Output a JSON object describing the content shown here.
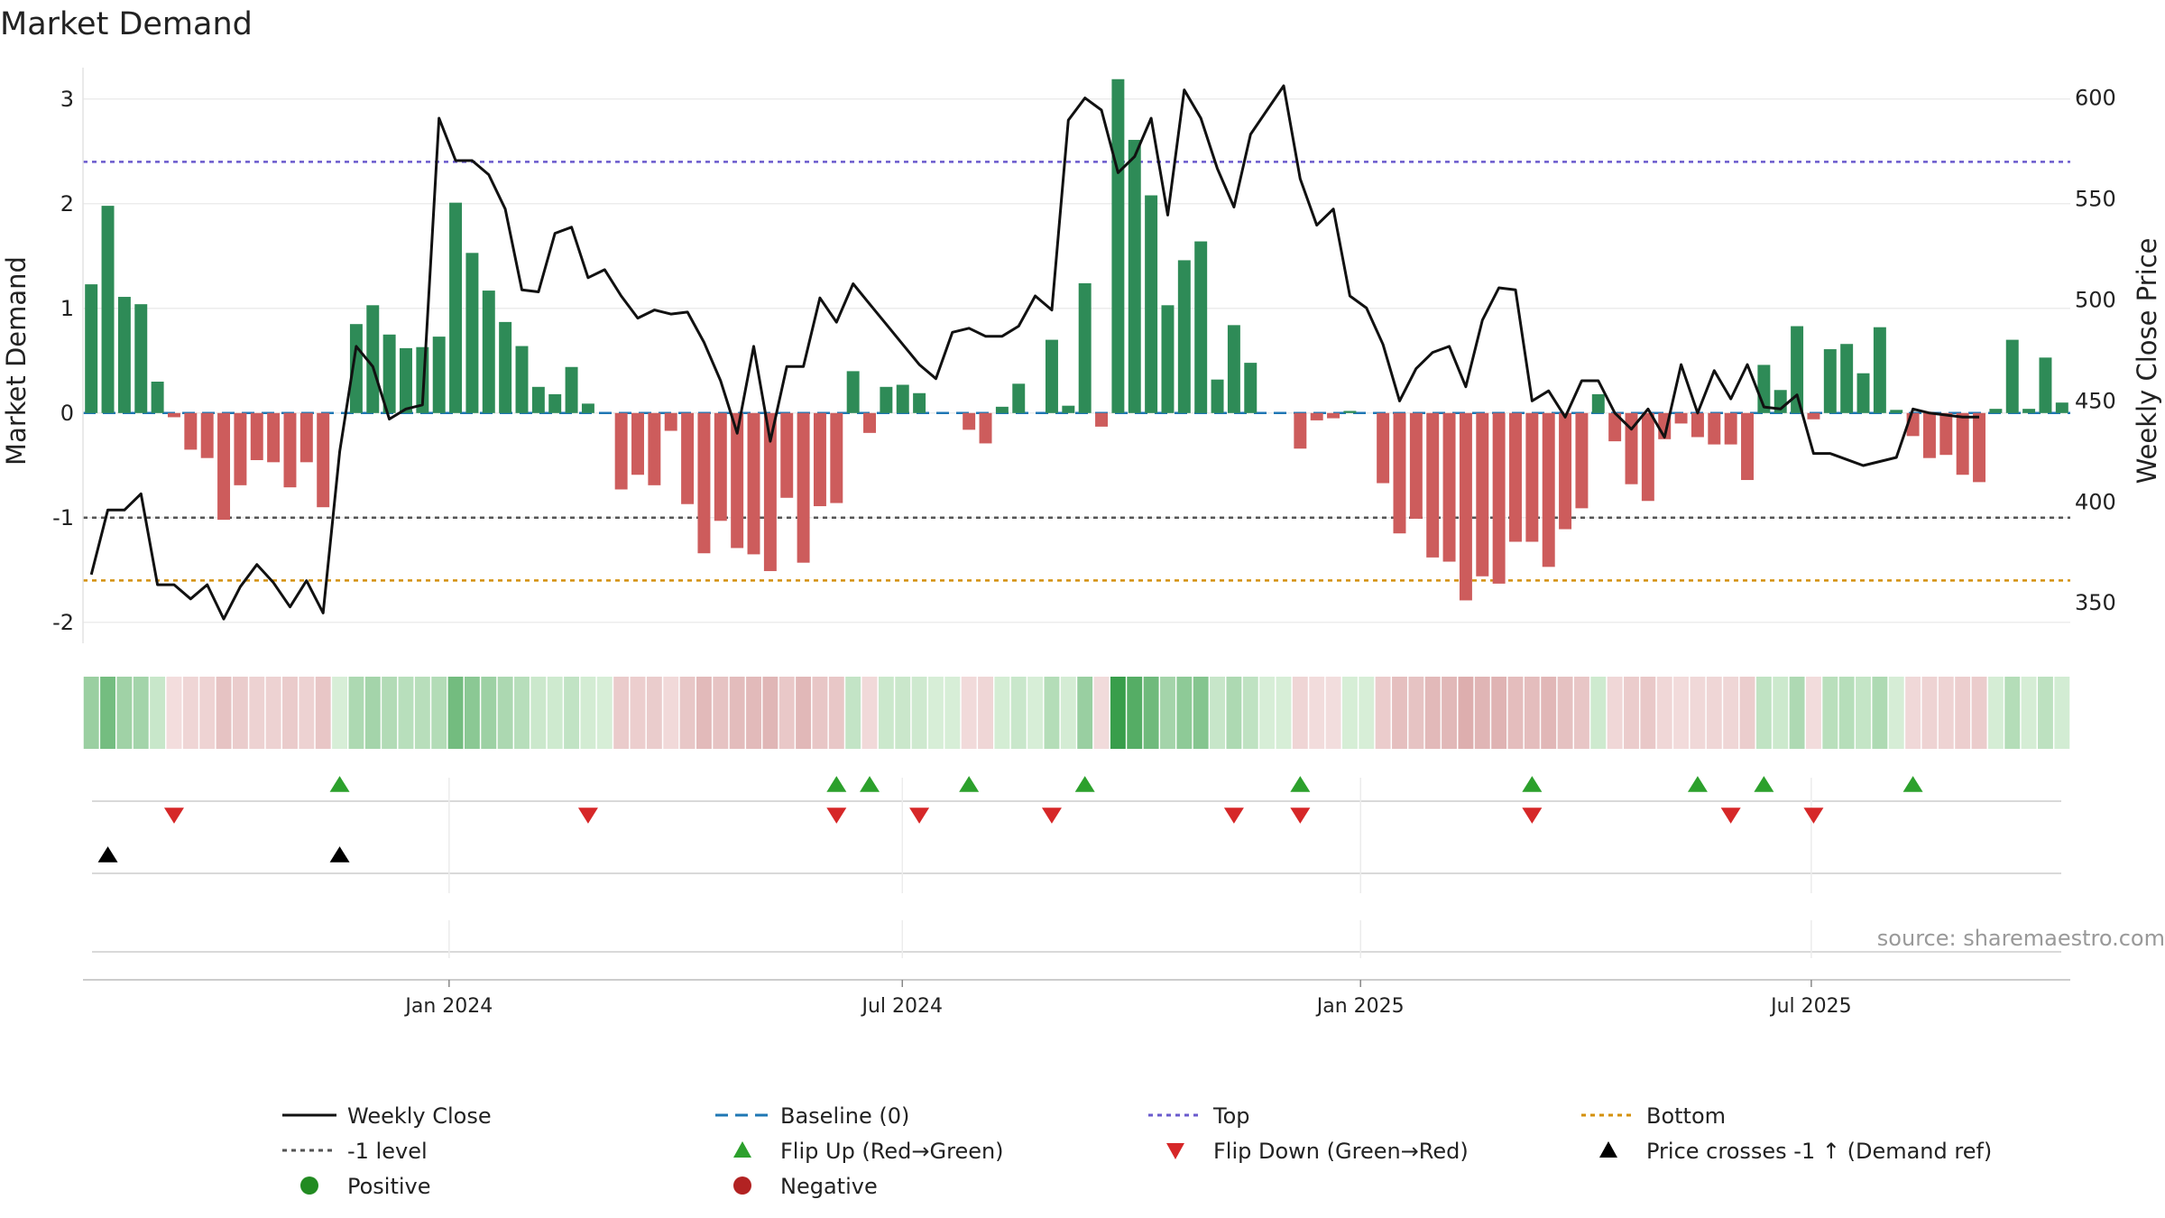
{
  "chart_data": {
    "type": "bar",
    "title": "Market Demand",
    "ylabel_left": "Market Demand",
    "ylabel_right": "Weekly Close Price",
    "xaxis": {
      "start": "2023-08-07",
      "end": "2025-10-13",
      "ticks": [
        {
          "date": "2024-01-01",
          "label": "Jan 2024"
        },
        {
          "date": "2024-07-01",
          "label": "Jul 2024"
        },
        {
          "date": "2025-01-01",
          "label": "Jan 2025"
        },
        {
          "date": "2025-07-01",
          "label": "Jul 2025"
        }
      ]
    },
    "ylim_left": [
      -2.2,
      3.3
    ],
    "ylim_right": [
      330,
      615
    ],
    "yticks_left": [
      3,
      2,
      1,
      0,
      -1,
      -2
    ],
    "yticks_right": [
      600,
      550,
      500,
      450,
      400,
      350
    ],
    "reference_lines": {
      "baseline": 0,
      "minus_one": -1,
      "top": 2.4,
      "bottom": -1.6
    },
    "series": [
      {
        "name": "Market Demand",
        "values": [
          1.23,
          1.98,
          1.11,
          1.04,
          0.3,
          -0.04,
          -0.35,
          -0.43,
          -1.02,
          -0.69,
          -0.45,
          -0.47,
          -0.71,
          -0.47,
          -0.9,
          0.0,
          0.85,
          1.03,
          0.75,
          0.62,
          0.63,
          0.73,
          2.01,
          1.53,
          1.17,
          0.87,
          0.64,
          0.25,
          0.18,
          0.44,
          0.09,
          0.0,
          -0.73,
          -0.59,
          -0.69,
          -0.17,
          -0.87,
          -1.34,
          -1.03,
          -1.29,
          -1.35,
          -1.51,
          -0.81,
          -1.43,
          -0.89,
          -0.86,
          0.4,
          -0.19,
          0.25,
          0.27,
          0.19,
          0.0,
          0.0,
          -0.16,
          -0.29,
          0.06,
          0.28,
          0.0,
          0.7,
          0.07,
          1.24,
          -0.13,
          3.19,
          2.61,
          2.08,
          1.03,
          1.46,
          1.64,
          0.32,
          0.84,
          0.48,
          0.0,
          0.0,
          -0.34,
          -0.07,
          -0.05,
          0.02,
          0.0,
          -0.67,
          -1.15,
          -1.01,
          -1.38,
          -1.42,
          -1.79,
          -1.56,
          -1.63,
          -1.23,
          -1.23,
          -1.47,
          -1.11,
          -0.91,
          0.18,
          -0.27,
          -0.68,
          -0.84,
          -0.25,
          -0.1,
          -0.23,
          -0.3,
          -0.3,
          -0.64,
          0.46,
          0.22,
          0.83,
          -0.06,
          0.61,
          0.66,
          0.38,
          0.82,
          0.03,
          -0.22,
          -0.43,
          -0.4,
          -0.59,
          -0.66,
          0.04,
          0.7,
          0.04,
          0.53,
          0.1
        ]
      },
      {
        "name": "Weekly Close",
        "values": [
          364,
          396,
          396,
          404,
          359,
          359,
          352,
          359,
          342,
          358,
          369,
          360,
          348,
          361,
          345,
          425,
          477,
          467,
          441,
          446,
          448,
          590,
          569,
          569,
          562,
          545,
          505,
          504,
          533,
          536,
          511,
          515,
          502,
          491,
          495,
          493,
          494,
          479,
          460,
          434,
          477,
          430,
          467,
          467,
          501,
          489,
          508,
          498,
          488,
          478,
          468,
          461,
          484,
          486,
          482,
          482,
          487,
          502,
          495,
          589,
          600,
          594,
          563,
          571,
          590,
          542,
          604,
          590,
          565,
          546,
          582,
          594,
          606,
          560,
          537,
          545,
          502,
          496,
          478,
          450,
          466,
          474,
          477,
          457,
          490,
          506,
          505,
          450,
          455,
          442,
          460,
          460,
          444,
          436,
          446,
          432,
          468,
          444,
          465,
          451,
          468,
          447,
          446,
          453,
          424,
          424,
          421,
          418,
          420,
          422,
          446,
          444,
          443,
          442,
          442
        ]
      }
    ],
    "heatmap_strip": "weekly demand intensity, one cell per week",
    "flip_up_weeks": [
      15,
      45,
      47,
      53,
      60,
      73,
      87,
      97,
      101,
      110
    ],
    "flip_down_weeks": [
      5,
      30,
      45,
      50,
      58,
      69,
      73,
      87,
      99,
      104
    ],
    "cross_weeks": [
      1,
      15
    ],
    "legend_position": "bottom",
    "legend": [
      {
        "label": "Weekly Close",
        "icon": "solid-line"
      },
      {
        "label": "Baseline (0)",
        "icon": "dashed-line"
      },
      {
        "label": "Top",
        "icon": "dotted-line"
      },
      {
        "label": "Bottom",
        "icon": "dotted-line"
      },
      {
        "label": "-1 level",
        "icon": "dotted-line"
      },
      {
        "label": "Flip Up (Red→Green)",
        "icon": "triangle-up"
      },
      {
        "label": "Flip Down (Green→Red)",
        "icon": "triangle-down"
      },
      {
        "label": "Price crosses -1 ↑ (Demand ref)",
        "icon": "triangle-up"
      },
      {
        "label": "Positive",
        "icon": "circle"
      },
      {
        "label": "Negative",
        "icon": "circle"
      }
    ]
  },
  "source": "source: sharemaestro.com",
  "colors": {
    "positive": "#2e8b57",
    "negative": "#cd5c5c",
    "price": "#111111",
    "baseline": "#1f77b4",
    "top": "#6a5acd",
    "bottom": "#d4900a",
    "minus_one": "#555555",
    "flip_up": "#2ca02c",
    "flip_down": "#d62728",
    "cross": "#000000",
    "legend_positive": "#228b22",
    "legend_negative": "#b22222"
  }
}
